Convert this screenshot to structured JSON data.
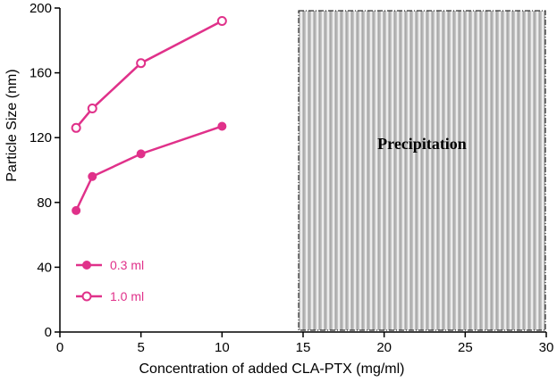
{
  "chart_data": {
    "type": "line",
    "xlabel": "Concentration of added CLA-PTX (mg/ml)",
    "ylabel": "Particle Size (nm)",
    "xlim": [
      0,
      30
    ],
    "ylim": [
      0,
      200
    ],
    "x_ticks": [
      0,
      5,
      10,
      15,
      20,
      25,
      30
    ],
    "y_ticks": [
      0,
      40,
      80,
      120,
      160,
      200
    ],
    "grid": false,
    "legend_position": "bottom-left",
    "series": [
      {
        "name": "0.3 ml",
        "marker": "filled-circle",
        "color": "#e0318a",
        "x": [
          1,
          2,
          5,
          10
        ],
        "y": [
          75,
          96,
          110,
          127
        ]
      },
      {
        "name": "1.0 ml",
        "marker": "open-circle",
        "color": "#e0318a",
        "x": [
          1,
          2,
          5,
          10
        ],
        "y": [
          126,
          138,
          166,
          192
        ]
      }
    ],
    "shaded_region": {
      "x_range": [
        15,
        30
      ],
      "y_range": [
        0,
        200
      ],
      "label": "Precipitation",
      "fill": "#bdbdbd"
    }
  }
}
